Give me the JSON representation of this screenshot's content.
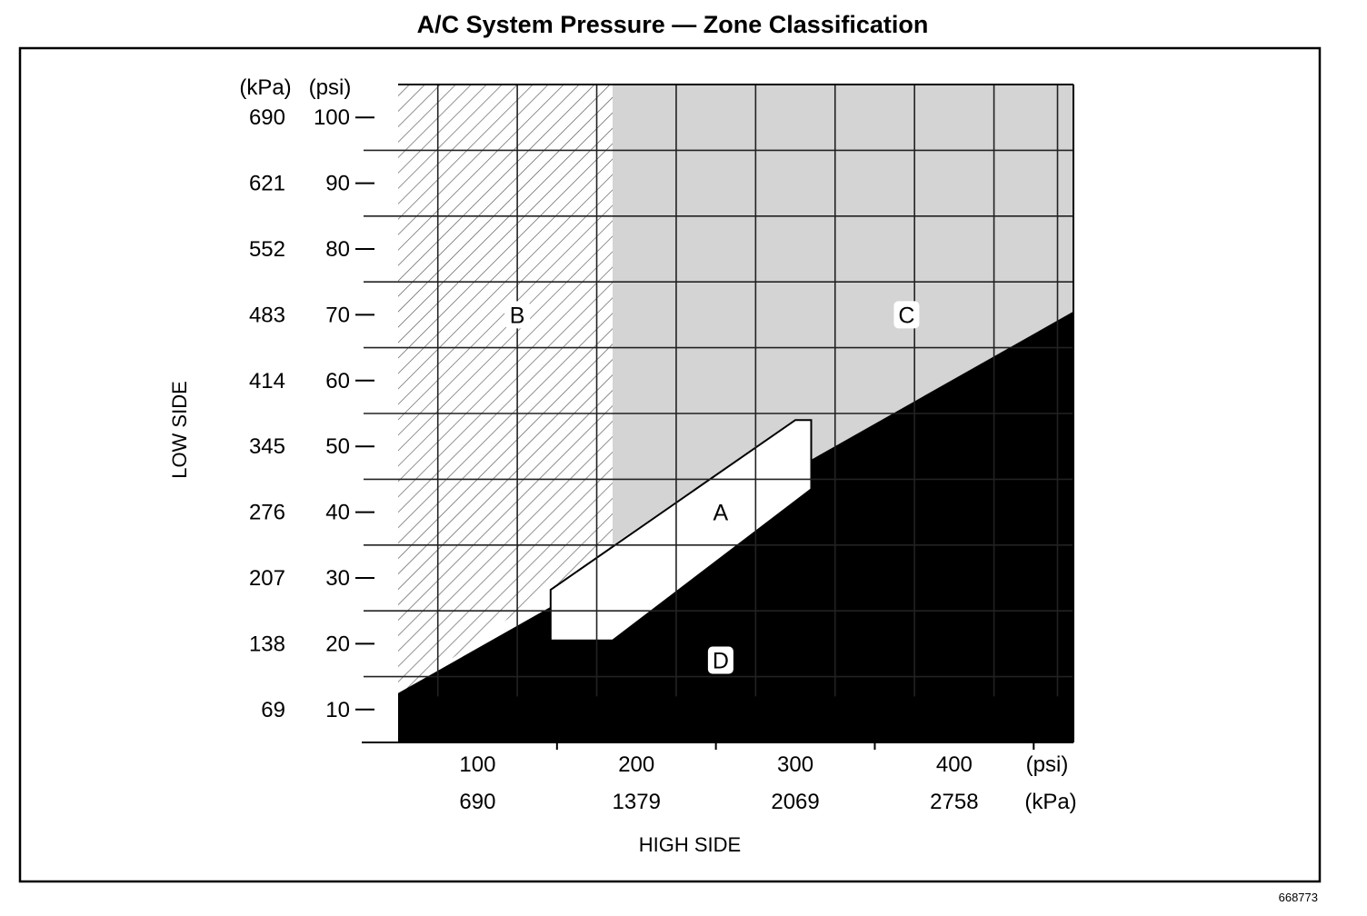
{
  "chart_data": {
    "type": "area",
    "title": "A/C System Pressure — Zone Classification",
    "xlabel": "HIGH SIDE",
    "ylabel": "LOW SIDE",
    "x_unit_primary": "(psi)",
    "x_unit_secondary": "(kPa)",
    "y_unit_primary": "(psi)",
    "y_unit_secondary": "(kPa)",
    "xlim": [
      50,
      475
    ],
    "ylim": [
      5,
      105
    ],
    "x_ticks_psi": [
      "100",
      "200",
      "300",
      "400"
    ],
    "x_ticks_kpa": [
      "690",
      "1379",
      "2069",
      "2758"
    ],
    "y_ticks_psi": [
      "100",
      "90",
      "80",
      "70",
      "60",
      "50",
      "40",
      "30",
      "20",
      "10"
    ],
    "y_ticks_kpa": [
      "690",
      "621",
      "552",
      "483",
      "414",
      "345",
      "276",
      "207",
      "138",
      "69"
    ],
    "x_tick_values": [
      100,
      200,
      300,
      400
    ],
    "y_tick_values": [
      100,
      90,
      80,
      70,
      60,
      50,
      40,
      30,
      20,
      10
    ],
    "grid": true,
    "zones": [
      {
        "label": "A",
        "fill": "#ffffff",
        "polygon": [
          [
            146,
            28.2
          ],
          [
            146,
            20.5
          ],
          [
            185,
            20.5
          ],
          [
            310,
            43.5
          ],
          [
            310,
            54
          ],
          [
            300,
            54
          ]
        ]
      },
      {
        "label": "B",
        "fill": "hatched",
        "polygon": [
          [
            50,
            105
          ],
          [
            185,
            105
          ],
          [
            185,
            35
          ],
          [
            50,
            12
          ]
        ]
      },
      {
        "label": "C",
        "fill": "#d4d4d4",
        "polygon": [
          [
            185,
            105
          ],
          [
            475,
            105
          ],
          [
            475,
            70.5
          ],
          [
            310,
            43.5
          ],
          [
            310,
            54
          ],
          [
            300,
            54
          ],
          [
            185,
            35
          ]
        ]
      },
      {
        "label": "D",
        "fill": "#000000",
        "polygon": [
          [
            50,
            5
          ],
          [
            475,
            5
          ],
          [
            475,
            70.5
          ],
          [
            50,
            12.5
          ]
        ]
      }
    ],
    "zone_label_positions": {
      "A": [
        253,
        40
      ],
      "B": [
        125,
        70
      ],
      "C": [
        370,
        70
      ],
      "D": [
        253,
        17.5
      ]
    }
  },
  "figure_number": "668773",
  "colors": {
    "zone_a": "#ffffff",
    "zone_c": "#d4d4d4",
    "zone_d": "#000000",
    "grid": "#000000"
  }
}
